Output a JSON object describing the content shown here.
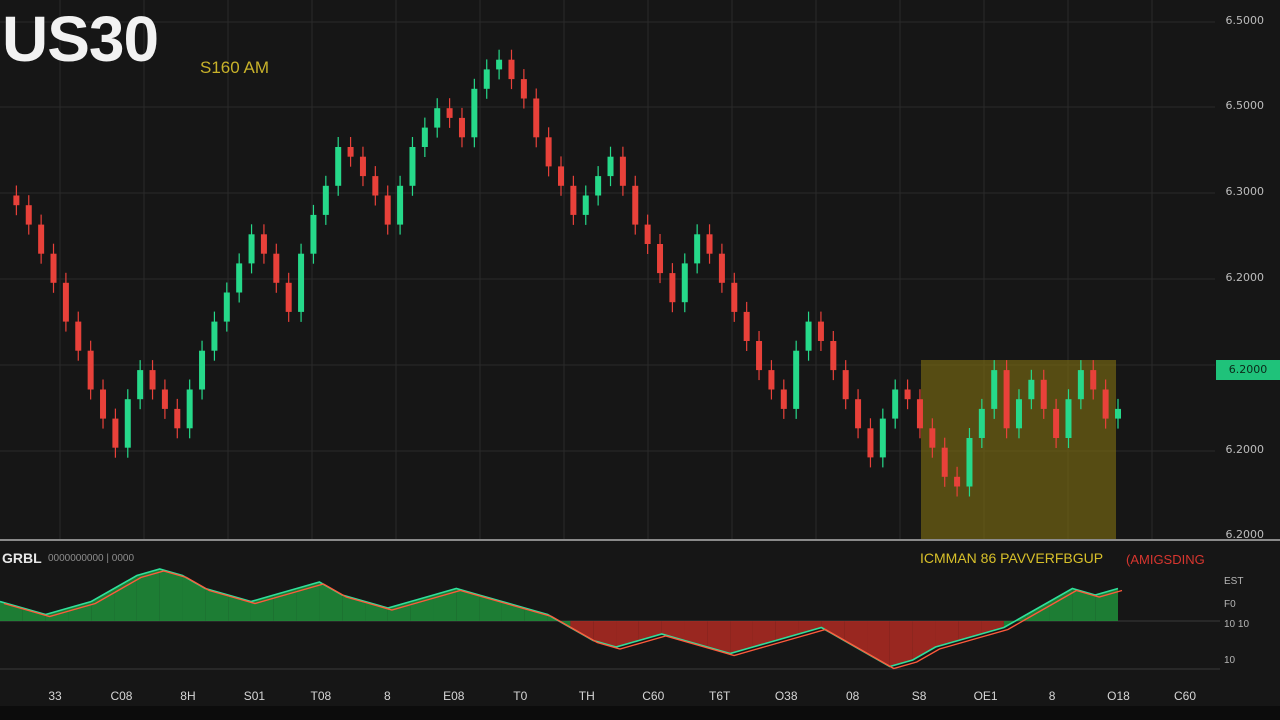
{
  "header": {
    "symbol": "US30",
    "time": "S160 AM"
  },
  "price_axis": {
    "labels": [
      "6.5000",
      "6.5000",
      "6.3000",
      "6.2000",
      "6.2000",
      "6.2000"
    ],
    "current_price_badge": "6.2000"
  },
  "indicator": {
    "name": "GRBL",
    "params": "0000000000 | 0000",
    "tick_labels": [
      "EST",
      "F0",
      "10 10",
      "10"
    ]
  },
  "zone": {
    "label": "ICMMAN 86 PAVVERFBGUP",
    "label_2": "(AMIGSDING"
  },
  "x_axis": {
    "tick_labels": [
      "33",
      "C08",
      "8H",
      "S01",
      "T08",
      "8",
      "E08",
      "T0",
      "TH",
      "C60",
      "T6T",
      "O38",
      "08",
      "S8",
      "OE1",
      "8",
      "O18",
      "C60"
    ]
  },
  "colors": {
    "background": "#161616",
    "bull": "#26d98a",
    "bear": "#e8413a",
    "zone": "#7a6a12",
    "grid": "#2a2a2a"
  },
  "chart_data": [
    {
      "type": "candlestick",
      "title": "US30",
      "ylim": [
        0,
        100
      ],
      "series": [
        {
          "values": [
            70,
            68,
            64,
            58,
            52,
            44,
            38,
            30,
            24,
            18,
            28,
            34,
            30,
            26,
            22,
            30,
            38,
            44,
            50,
            56,
            62,
            58,
            52,
            46,
            58,
            66,
            72,
            80,
            78,
            74,
            70,
            64,
            72,
            80,
            84,
            88,
            86,
            82,
            92,
            96,
            98,
            94,
            90,
            82,
            76,
            72,
            66,
            70,
            74,
            78,
            72,
            64,
            60,
            54,
            48,
            56,
            62,
            58,
            52,
            46,
            40,
            34,
            30,
            26,
            38,
            44,
            40,
            34,
            28,
            22,
            16,
            24,
            30,
            28,
            22,
            18,
            12,
            10,
            20,
            26,
            34,
            22,
            28,
            32,
            26,
            20,
            28,
            34,
            30,
            24,
            26
          ]
        }
      ]
    },
    {
      "type": "area",
      "title": "GRBL",
      "series": [
        {
          "values": [
            3,
            2,
            1,
            2,
            3,
            5,
            7,
            8,
            7,
            5,
            4,
            3,
            4,
            5,
            6,
            4,
            3,
            2,
            3,
            4,
            5,
            4,
            3,
            2,
            1,
            -1,
            -3,
            -4,
            -3,
            -2,
            -3,
            -4,
            -5,
            -4,
            -3,
            -2,
            -1,
            -3,
            -5,
            -7,
            -6,
            -4,
            -3,
            -2,
            -1,
            1,
            3,
            5,
            4,
            5
          ]
        }
      ]
    }
  ]
}
